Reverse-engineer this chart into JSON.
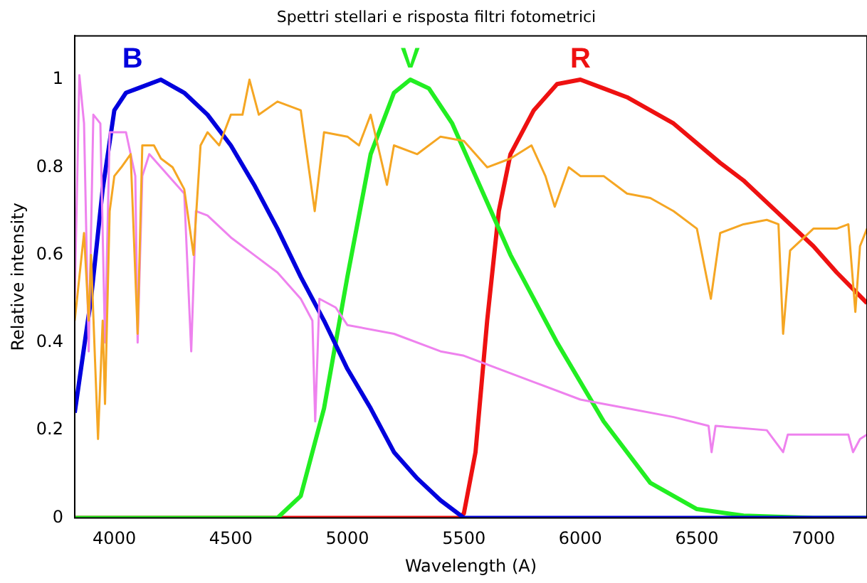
{
  "chart_data": {
    "type": "line",
    "title": "Spettri stellari e risposta filtri fotometrici",
    "xlabel": "Wavelength (A)",
    "ylabel": "Relative intensity",
    "xlim": [
      3830,
      7230
    ],
    "ylim": [
      0,
      1.1
    ],
    "xticks": [
      4000,
      4500,
      5000,
      5500,
      6000,
      6500,
      7000
    ],
    "yticks": [
      0,
      0.2,
      0.4,
      0.6,
      0.8,
      1
    ],
    "grid": false,
    "marker": "none",
    "line_style": "solid",
    "legend": false,
    "series": [
      {
        "color": "#f5a623",
        "x": [
          3830,
          3850,
          3870,
          3890,
          3900,
          3930,
          3950,
          3960,
          3980,
          4000,
          4030,
          4070,
          4100,
          4120,
          4170,
          4200,
          4250,
          4300,
          4340,
          4370,
          4400,
          4450,
          4500,
          4550,
          4580,
          4620,
          4700,
          4800,
          4860,
          4900,
          5000,
          5050,
          5100,
          5170,
          5200,
          5300,
          5400,
          5500,
          5600,
          5700,
          5790,
          5850,
          5890,
          5950,
          6000,
          6100,
          6200,
          6300,
          6400,
          6500,
          6560,
          6600,
          6700,
          6800,
          6850,
          6870,
          6900,
          7000,
          7100,
          7150,
          7180,
          7200,
          7230
        ],
        "values": [
          0.45,
          0.55,
          0.65,
          0.45,
          0.6,
          0.18,
          0.45,
          0.26,
          0.7,
          0.78,
          0.8,
          0.83,
          0.42,
          0.85,
          0.85,
          0.82,
          0.8,
          0.75,
          0.6,
          0.85,
          0.88,
          0.85,
          0.92,
          0.92,
          1.0,
          0.92,
          0.95,
          0.93,
          0.7,
          0.88,
          0.87,
          0.85,
          0.92,
          0.76,
          0.85,
          0.83,
          0.87,
          0.86,
          0.8,
          0.82,
          0.85,
          0.78,
          0.71,
          0.8,
          0.78,
          0.78,
          0.74,
          0.73,
          0.7,
          0.66,
          0.5,
          0.65,
          0.67,
          0.68,
          0.67,
          0.42,
          0.61,
          0.66,
          0.66,
          0.67,
          0.47,
          0.62,
          0.66
        ]
      },
      {
        "color": "#ee82ee",
        "x": [
          3830,
          3850,
          3870,
          3890,
          3910,
          3940,
          3960,
          3980,
          4050,
          4090,
          4100,
          4120,
          4150,
          4200,
          4300,
          4330,
          4350,
          4400,
          4500,
          4600,
          4700,
          4800,
          4850,
          4862,
          4880,
          4950,
          5000,
          5200,
          5400,
          5500,
          5800,
          6000,
          6200,
          6400,
          6550,
          6563,
          6580,
          6800,
          6870,
          6890,
          7000,
          7150,
          7170,
          7200,
          7230
        ],
        "values": [
          0.5,
          1.01,
          0.9,
          0.38,
          0.92,
          0.9,
          0.4,
          0.88,
          0.88,
          0.78,
          0.4,
          0.78,
          0.83,
          0.8,
          0.74,
          0.38,
          0.7,
          0.69,
          0.64,
          0.6,
          0.56,
          0.5,
          0.45,
          0.22,
          0.5,
          0.48,
          0.44,
          0.42,
          0.38,
          0.37,
          0.31,
          0.27,
          0.25,
          0.23,
          0.21,
          0.15,
          0.21,
          0.2,
          0.15,
          0.19,
          0.19,
          0.19,
          0.15,
          0.18,
          0.19
        ]
      },
      {
        "name": "B",
        "color": "#0000dd",
        "x": [
          3830,
          3900,
          3950,
          4000,
          4050,
          4100,
          4200,
          4300,
          4400,
          4500,
          4600,
          4700,
          4800,
          4900,
          5000,
          5100,
          5200,
          5300,
          5400,
          5500,
          6000,
          7230
        ],
        "values": [
          0.24,
          0.5,
          0.75,
          0.93,
          0.97,
          0.98,
          1.0,
          0.97,
          0.92,
          0.85,
          0.76,
          0.66,
          0.55,
          0.45,
          0.34,
          0.25,
          0.15,
          0.09,
          0.04,
          0,
          0,
          0
        ]
      },
      {
        "name": "V",
        "color": "#22ee22",
        "x": [
          3830,
          4700,
          4800,
          4900,
          5000,
          5100,
          5200,
          5270,
          5350,
          5450,
          5550,
          5700,
          5900,
          6100,
          6300,
          6500,
          6700,
          7000,
          7230
        ],
        "values": [
          0,
          0,
          0.05,
          0.25,
          0.55,
          0.83,
          0.97,
          1.0,
          0.98,
          0.9,
          0.78,
          0.6,
          0.4,
          0.22,
          0.08,
          0.02,
          0.005,
          0,
          0
        ]
      },
      {
        "name": "R",
        "color": "#ee1111",
        "x": [
          3830,
          5480,
          5500,
          5550,
          5600,
          5650,
          5700,
          5800,
          5900,
          6000,
          6100,
          6200,
          6400,
          6600,
          6700,
          6800,
          7000,
          7100,
          7230
        ],
        "values": [
          0,
          0,
          0.01,
          0.15,
          0.45,
          0.7,
          0.83,
          0.93,
          0.99,
          1.0,
          0.98,
          0.96,
          0.9,
          0.81,
          0.77,
          0.72,
          0.62,
          0.56,
          0.49
        ]
      }
    ]
  }
}
